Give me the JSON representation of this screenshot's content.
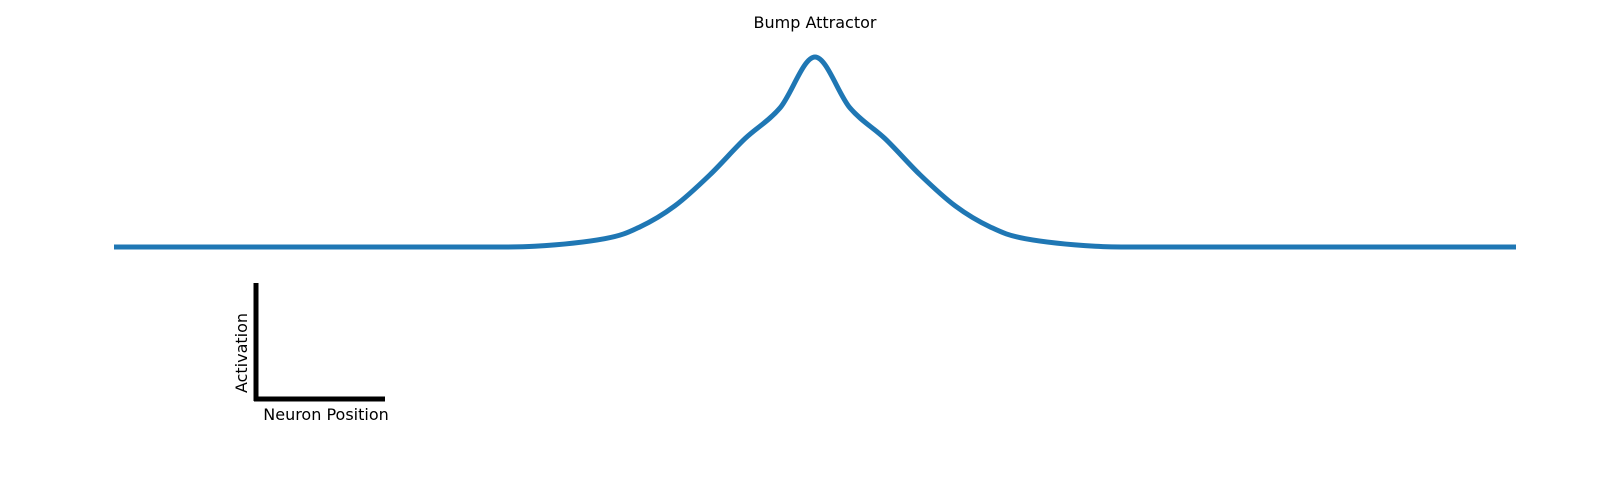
{
  "chart_data": {
    "type": "line",
    "title": "Bump Attractor",
    "xlabel": "Neuron Position",
    "ylabel": "Activation",
    "grid": false,
    "axes_visible": false,
    "scale_bar": true,
    "xlim": [
      0,
      1
    ],
    "ylim": [
      -0.75,
      1.05
    ],
    "series": [
      {
        "color": "#1f77b4",
        "x": [
          0,
          0.05,
          0.1,
          0.15,
          0.2,
          0.25,
          0.3,
          0.35,
          0.375,
          0.4,
          0.425,
          0.45,
          0.475,
          0.5,
          0.525,
          0.55,
          0.575,
          0.6,
          0.625,
          0.65,
          0.7,
          0.75,
          0.8,
          0.85,
          0.9,
          0.95,
          1
        ],
        "y": [
          0,
          0,
          0,
          0,
          0,
          0.0002,
          0.0039,
          0.0439,
          0.1054,
          0.2163,
          0.3796,
          0.5698,
          0.7316,
          1.0,
          0.7316,
          0.5698,
          0.3796,
          0.2163,
          0.1054,
          0.0439,
          0.0039,
          0.0002,
          0,
          0,
          0,
          0,
          0
        ]
      }
    ]
  }
}
